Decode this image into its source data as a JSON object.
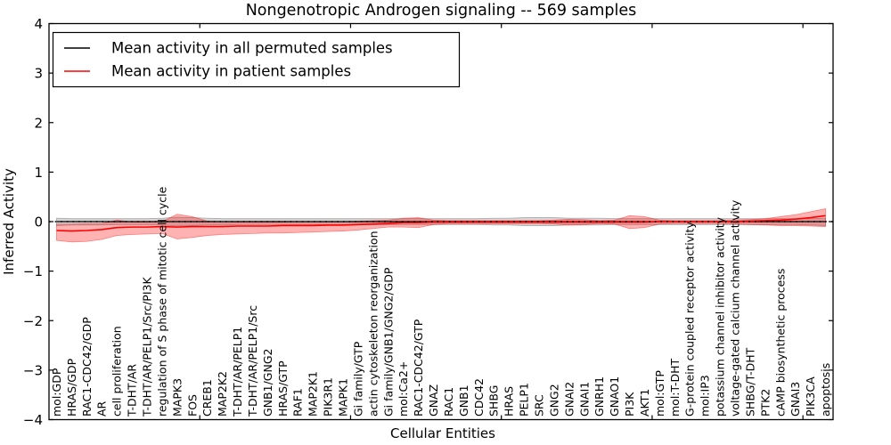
{
  "figure": {
    "title": "Nongenotropic Androgen signaling -- 569 samples",
    "xlabel": "Cellular Entities",
    "ylabel": "Inferred Activity"
  },
  "legend": {
    "entries": [
      {
        "label": "Mean activity in all permuted samples",
        "color": "#000000"
      },
      {
        "label": "Mean activity in patient samples",
        "color": "#ff0000"
      }
    ]
  },
  "chart_data": {
    "type": "line",
    "title": "Nongenotropic Androgen signaling -- 569 samples",
    "xlabel": "Cellular Entities",
    "ylabel": "Inferred Activity",
    "ylim": [
      -4,
      4
    ],
    "ytick_values": [
      -4,
      -3,
      -2,
      -1,
      0,
      1,
      2,
      3,
      4
    ],
    "ytick_labels": [
      "−4",
      "−3",
      "−2",
      "−1",
      "0",
      "1",
      "2",
      "3",
      "4"
    ],
    "xtick_values": [
      10,
      20,
      30,
      40,
      50
    ],
    "grid": false,
    "legend_position": "upper left",
    "zero_line": {
      "y": 0,
      "style": "dotted",
      "color": "#000000"
    },
    "categories": [
      "mol:GDP",
      "HRAS/GDP",
      "RAC1-CDC42/GDP",
      "AR",
      "cell proliferation",
      "T-DHT/AR",
      "T-DHT/AR/PELP1/Src/PI3K",
      "regulation of S phase of mitotic cell cycle",
      "MAPK3",
      "FOS",
      "CREB1",
      "MAP2K2",
      "T-DHT/AR/PELP1",
      "T-DHT/AR/PELP1/Src",
      "GNB1/GNG2",
      "HRAS/GTP",
      "RAF1",
      "MAP2K1",
      "PIK3R1",
      "MAPK1",
      "Gi family/GTP",
      "actin cytoskeleton reorganization",
      "Gi family/GNB1/GNG2/GDP",
      "mol:Ca2+",
      "RAC1-CDC42/GTP",
      "GNAZ",
      "RAC1",
      "GNB1",
      "CDC42",
      "SHBG",
      "HRAS",
      "PELP1",
      "SRC",
      "GNG2",
      "GNAI2",
      "GNAI1",
      "GNRH1",
      "GNAO1",
      "PI3K",
      "AKT1",
      "mol:GTP",
      "mol:T-DHT",
      "G-protein coupled receptor activity",
      "mol:IP3",
      "potassium channel inhibitor activity",
      "voltage-gated calcium channel activity",
      "SHBG/T-DHT",
      "PTK2",
      "cAMP biosynthetic process",
      "GNAI3",
      "PIK3CA",
      "apoptosis"
    ],
    "series": [
      {
        "name": "Mean activity in all permuted samples",
        "color": "#000000",
        "band_fill_alpha": 0.16,
        "values": [
          0,
          0,
          0,
          0,
          0,
          0,
          0,
          0,
          0,
          0,
          0,
          0,
          0,
          0,
          0,
          0,
          0,
          0,
          0,
          0,
          0,
          0,
          0,
          0,
          0,
          0,
          0,
          0,
          0,
          0,
          0,
          0,
          0,
          0,
          0,
          0,
          0,
          0,
          0,
          0,
          0,
          0,
          0,
          0,
          0,
          0,
          0,
          0,
          0,
          0,
          0,
          0
        ],
        "band_upper": [
          0.07,
          0.06,
          0.06,
          0.06,
          0.06,
          0.06,
          0.06,
          0.07,
          0.09,
          0.08,
          0.07,
          0.06,
          0.06,
          0.06,
          0.06,
          0.06,
          0.06,
          0.06,
          0.06,
          0.06,
          0.06,
          0.06,
          0.06,
          0.06,
          0.06,
          0.06,
          0.06,
          0.06,
          0.06,
          0.07,
          0.07,
          0.08,
          0.08,
          0.08,
          0.07,
          0.07,
          0.07,
          0.06,
          0.06,
          0.06,
          0.06,
          0.06,
          0.06,
          0.06,
          0.06,
          0.06,
          0.06,
          0.06,
          0.06,
          0.06,
          0.06,
          0.07
        ],
        "band_lower": [
          -0.08,
          -0.07,
          -0.07,
          -0.07,
          -0.06,
          -0.06,
          -0.06,
          -0.07,
          -0.09,
          -0.08,
          -0.07,
          -0.07,
          -0.06,
          -0.06,
          -0.06,
          -0.06,
          -0.06,
          -0.06,
          -0.06,
          -0.06,
          -0.06,
          -0.06,
          -0.06,
          -0.06,
          -0.06,
          -0.06,
          -0.06,
          -0.06,
          -0.06,
          -0.07,
          -0.07,
          -0.08,
          -0.08,
          -0.08,
          -0.07,
          -0.07,
          -0.07,
          -0.06,
          -0.06,
          -0.06,
          -0.06,
          -0.06,
          -0.06,
          -0.06,
          -0.06,
          -0.06,
          -0.06,
          -0.06,
          -0.06,
          -0.06,
          -0.07,
          -0.08
        ]
      },
      {
        "name": "Mean activity in patient samples",
        "color": "#ff0000",
        "band_fill_alpha": 0.3,
        "values": [
          -0.18,
          -0.19,
          -0.18,
          -0.16,
          -0.12,
          -0.11,
          -0.11,
          -0.1,
          -0.11,
          -0.1,
          -0.1,
          -0.1,
          -0.09,
          -0.09,
          -0.09,
          -0.08,
          -0.08,
          -0.08,
          -0.07,
          -0.07,
          -0.06,
          -0.05,
          -0.04,
          -0.02,
          -0.02,
          -0.01,
          -0.01,
          -0.01,
          -0.01,
          -0.01,
          -0.01,
          -0.01,
          -0.01,
          -0.01,
          -0.01,
          -0.01,
          -0.01,
          -0.01,
          -0.01,
          -0.01,
          0,
          0,
          0,
          0,
          0,
          0,
          0.01,
          0.02,
          0.03,
          0.05,
          0.08,
          0.12
        ],
        "band_upper": [
          -0.05,
          -0.05,
          -0.04,
          -0.04,
          0.03,
          -0.01,
          -0.01,
          0,
          0.15,
          0.1,
          0.01,
          0,
          -0.01,
          -0.01,
          -0.01,
          -0.01,
          0,
          0,
          0,
          0,
          0.01,
          0.02,
          0.03,
          0.07,
          0.08,
          0.03,
          0.02,
          0.02,
          0.02,
          0.02,
          0.02,
          0.02,
          0.02,
          0.03,
          0.05,
          0.04,
          0.02,
          0.03,
          0.12,
          0.1,
          0.03,
          0.02,
          0.02,
          0.02,
          0.02,
          0.03,
          0.04,
          0.06,
          0.1,
          0.14,
          0.2,
          0.26
        ],
        "band_lower": [
          -0.38,
          -0.41,
          -0.4,
          -0.36,
          -0.28,
          -0.26,
          -0.25,
          -0.24,
          -0.35,
          -0.32,
          -0.28,
          -0.26,
          -0.25,
          -0.24,
          -0.23,
          -0.23,
          -0.22,
          -0.21,
          -0.2,
          -0.19,
          -0.17,
          -0.14,
          -0.11,
          -0.11,
          -0.12,
          -0.06,
          -0.04,
          -0.04,
          -0.04,
          -0.04,
          -0.04,
          -0.04,
          -0.04,
          -0.05,
          -0.07,
          -0.06,
          -0.04,
          -0.05,
          -0.14,
          -0.12,
          -0.05,
          -0.04,
          -0.04,
          -0.04,
          -0.04,
          -0.05,
          -0.06,
          -0.07,
          -0.08,
          -0.08,
          -0.09,
          -0.1
        ]
      }
    ]
  }
}
